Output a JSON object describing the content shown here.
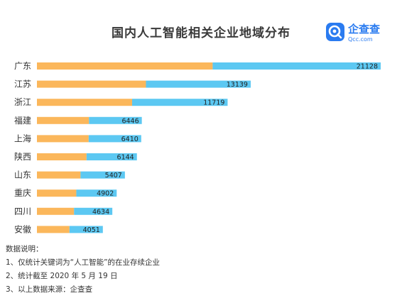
{
  "header": {
    "title": "国内人工智能相关企业地域分布"
  },
  "logo": {
    "name_cn": "企查查",
    "name_en": "Qcc.com"
  },
  "chart_data": {
    "type": "bar",
    "orientation": "horizontal",
    "stacked": true,
    "categories": [
      "广东",
      "江苏",
      "浙江",
      "福建",
      "上海",
      "陕西",
      "山东",
      "重庆",
      "四川",
      "安徽"
    ],
    "values": [
      21128,
      13139,
      11719,
      6446,
      6410,
      6144,
      5407,
      4902,
      4634,
      4051
    ],
    "series": [
      {
        "values": [
          10800,
          6700,
          5850,
          3200,
          3180,
          3050,
          2680,
          2420,
          2280,
          2000
        ]
      },
      {
        "values": [
          10328,
          6439,
          5869,
          3246,
          3230,
          3094,
          2727,
          2482,
          2354,
          2051
        ]
      }
    ],
    "colors": [
      "#FBB75B",
      "#5CC8F2"
    ],
    "title": "国内人工智能相关企业地域分布",
    "grid": false,
    "legend": "none"
  },
  "notes": {
    "heading": "数据说明：",
    "items": [
      "1、仅统计关键词为“人工智能”的在业存续企业",
      "2、统计截至 2020 年 5 月 19 日",
      "3、以上数据来源：企查查"
    ]
  }
}
